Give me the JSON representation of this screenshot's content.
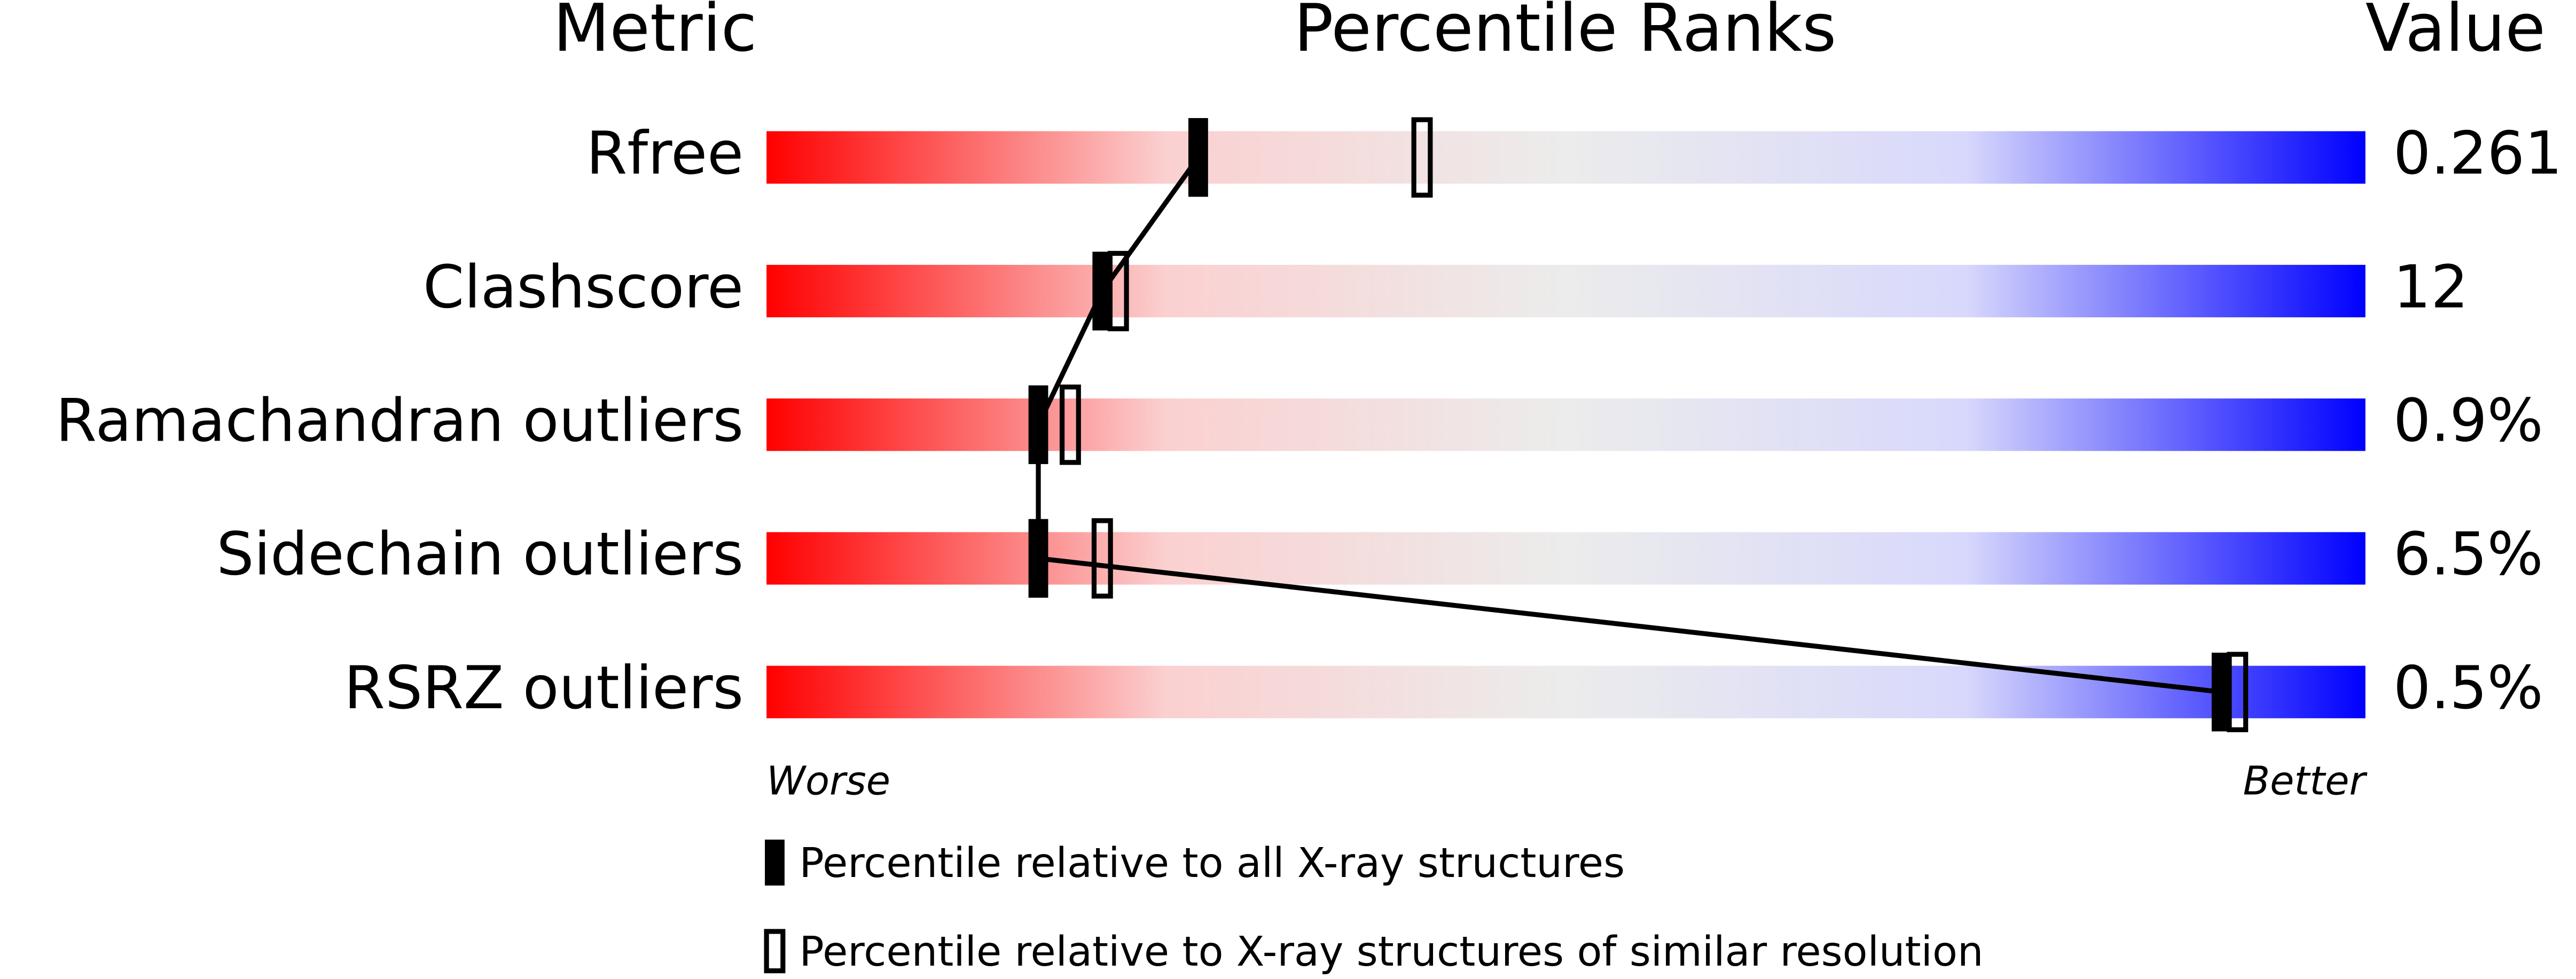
{
  "chart_data": {
    "type": "percentile",
    "headers": {
      "metric": "Metric",
      "ranks": "Percentile Ranks",
      "value": "Value"
    },
    "categories": [
      "Rfree",
      "Clashscore",
      "Ramachandran outliers",
      "Sidechain outliers",
      "RSRZ outliers"
    ],
    "series": [
      {
        "name": "Percentile relative to all X-ray structures",
        "color": "#000000",
        "style": "filled",
        "values": [
          27,
          21,
          17,
          17,
          91
        ]
      },
      {
        "name": "Percentile relative to X-ray structures of similar resolution",
        "color": "#000000",
        "style": "open",
        "values": [
          41,
          22,
          19,
          21,
          92
        ]
      }
    ],
    "value_labels": [
      "0.261",
      "12",
      "0.9%",
      "6.5%",
      "0.5%"
    ],
    "xlim": [
      0,
      100
    ],
    "axis_ends": {
      "low": "Worse",
      "high": "Better"
    },
    "gradient": [
      "#ff0000",
      "#fbd0d0",
      "#ececec",
      "#d8d8fc",
      "#0000ff"
    ]
  }
}
